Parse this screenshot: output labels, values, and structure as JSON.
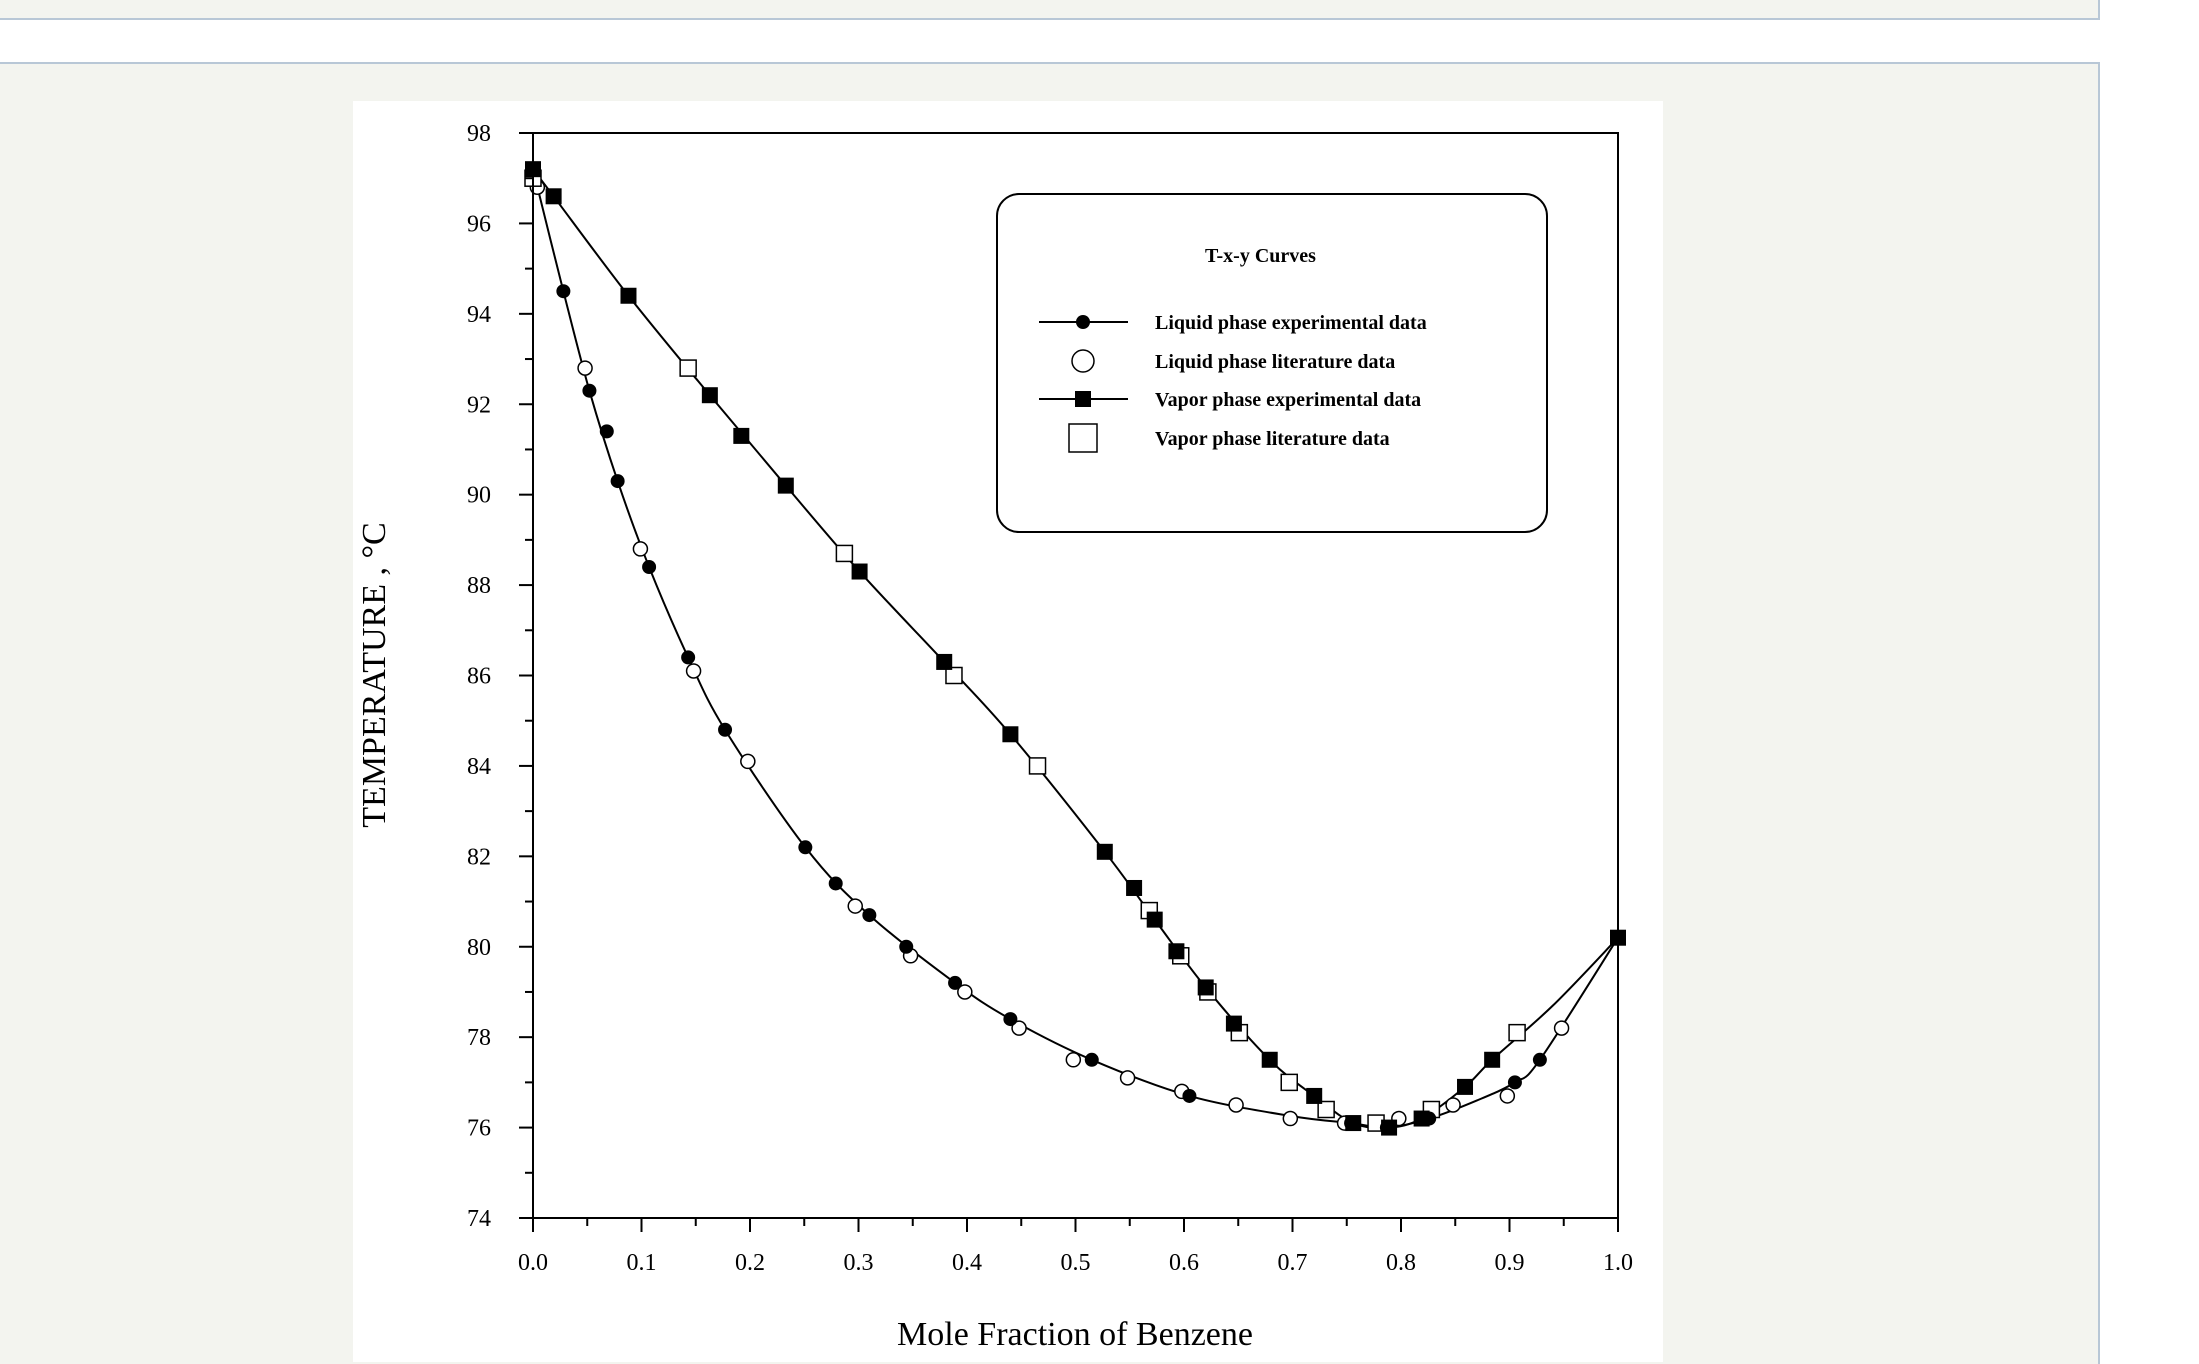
{
  "chart_data": {
    "type": "line",
    "legend": {
      "title": "T-x-y Curves",
      "placement": "top-right",
      "entries": [
        {
          "label": "Liquid phase experimental data",
          "marker": "filled-circle",
          "line": true
        },
        {
          "label": "Liquid phase literature data",
          "marker": "open-circle",
          "line": false
        },
        {
          "label": "Vapor phase experimental data",
          "marker": "filled-square",
          "line": true
        },
        {
          "label": "Vapor phase literature data",
          "marker": "open-square",
          "line": false
        }
      ]
    },
    "xlabel": "Mole Fraction of Benzene",
    "ylabel": "TEMPERATURE , °C",
    "xlim": [
      0.0,
      1.0
    ],
    "ylim": [
      74,
      98
    ],
    "xticks": [
      "0.0",
      "0.1",
      "0.2",
      "0.3",
      "0.4",
      "0.5",
      "0.6",
      "0.7",
      "0.8",
      "0.9",
      "1.0"
    ],
    "yticks": [
      "74",
      "76",
      "78",
      "80",
      "82",
      "84",
      "86",
      "88",
      "90",
      "92",
      "94",
      "96",
      "98"
    ],
    "grid": false,
    "series": [
      {
        "name": "Liquid phase experimental data",
        "marker": "filled-circle",
        "points": [
          [
            0.0,
            97.2
          ],
          [
            0.028,
            94.5
          ],
          [
            0.052,
            92.3
          ],
          [
            0.068,
            91.4
          ],
          [
            0.078,
            90.3
          ],
          [
            0.107,
            88.4
          ],
          [
            0.143,
            86.4
          ],
          [
            0.177,
            84.8
          ],
          [
            0.251,
            82.2
          ],
          [
            0.279,
            81.4
          ],
          [
            0.31,
            80.7
          ],
          [
            0.344,
            80.0
          ],
          [
            0.389,
            79.2
          ],
          [
            0.44,
            78.4
          ],
          [
            0.515,
            77.5
          ],
          [
            0.605,
            76.7
          ],
          [
            0.754,
            76.1
          ],
          [
            0.787,
            76.0
          ],
          [
            0.826,
            76.2
          ],
          [
            0.905,
            77.0
          ],
          [
            0.928,
            77.5
          ],
          [
            1.0,
            80.2
          ]
        ]
      },
      {
        "name": "Liquid phase literature data",
        "marker": "open-circle",
        "points": [
          [
            0.004,
            96.8
          ],
          [
            0.048,
            92.8
          ],
          [
            0.099,
            88.8
          ],
          [
            0.148,
            86.1
          ],
          [
            0.198,
            84.1
          ],
          [
            0.297,
            80.9
          ],
          [
            0.348,
            79.8
          ],
          [
            0.398,
            79.0
          ],
          [
            0.448,
            78.2
          ],
          [
            0.498,
            77.5
          ],
          [
            0.548,
            77.1
          ],
          [
            0.598,
            76.8
          ],
          [
            0.648,
            76.5
          ],
          [
            0.698,
            76.2
          ],
          [
            0.748,
            76.1
          ],
          [
            0.798,
            76.2
          ],
          [
            0.848,
            76.5
          ],
          [
            0.898,
            76.7
          ],
          [
            0.948,
            78.2
          ]
        ]
      },
      {
        "name": "Vapor phase experimental data",
        "marker": "filled-square",
        "points": [
          [
            0.0,
            97.2
          ],
          [
            0.019,
            96.6
          ],
          [
            0.088,
            94.4
          ],
          [
            0.163,
            92.2
          ],
          [
            0.192,
            91.3
          ],
          [
            0.233,
            90.2
          ],
          [
            0.301,
            88.3
          ],
          [
            0.379,
            86.3
          ],
          [
            0.44,
            84.7
          ],
          [
            0.527,
            82.1
          ],
          [
            0.554,
            81.3
          ],
          [
            0.573,
            80.6
          ],
          [
            0.593,
            79.9
          ],
          [
            0.62,
            79.1
          ],
          [
            0.646,
            78.3
          ],
          [
            0.679,
            77.5
          ],
          [
            0.72,
            76.7
          ],
          [
            0.756,
            76.1
          ],
          [
            0.789,
            76.0
          ],
          [
            0.819,
            76.2
          ],
          [
            0.859,
            76.9
          ],
          [
            0.884,
            77.5
          ],
          [
            1.0,
            80.2
          ]
        ]
      },
      {
        "name": "Vapor phase literature data",
        "marker": "open-square",
        "points": [
          [
            0.0,
            97.0
          ],
          [
            0.143,
            92.8
          ],
          [
            0.287,
            88.7
          ],
          [
            0.388,
            86.0
          ],
          [
            0.465,
            84.0
          ],
          [
            0.568,
            80.8
          ],
          [
            0.597,
            79.8
          ],
          [
            0.622,
            79.0
          ],
          [
            0.651,
            78.1
          ],
          [
            0.697,
            77.0
          ],
          [
            0.731,
            76.4
          ],
          [
            0.777,
            76.1
          ],
          [
            0.828,
            76.4
          ],
          [
            0.907,
            78.1
          ]
        ]
      }
    ],
    "curves": [
      {
        "name": "Liquid phase experimental data",
        "points": [
          [
            0.0,
            97.2
          ],
          [
            0.028,
            94.5
          ],
          [
            0.052,
            92.3
          ],
          [
            0.078,
            90.3
          ],
          [
            0.107,
            88.4
          ],
          [
            0.143,
            86.4
          ],
          [
            0.177,
            84.8
          ],
          [
            0.251,
            82.2
          ],
          [
            0.31,
            80.7
          ],
          [
            0.389,
            79.2
          ],
          [
            0.44,
            78.4
          ],
          [
            0.515,
            77.5
          ],
          [
            0.605,
            76.7
          ],
          [
            0.7,
            76.25
          ],
          [
            0.754,
            76.1
          ],
          [
            0.787,
            76.0
          ],
          [
            0.826,
            76.2
          ],
          [
            0.87,
            76.6
          ],
          [
            0.905,
            77.0
          ],
          [
            0.928,
            77.5
          ],
          [
            1.0,
            80.2
          ]
        ]
      },
      {
        "name": "Vapor phase experimental data",
        "points": [
          [
            0.0,
            97.2
          ],
          [
            0.019,
            96.6
          ],
          [
            0.088,
            94.4
          ],
          [
            0.163,
            92.2
          ],
          [
            0.233,
            90.2
          ],
          [
            0.301,
            88.3
          ],
          [
            0.379,
            86.3
          ],
          [
            0.44,
            84.7
          ],
          [
            0.527,
            82.1
          ],
          [
            0.573,
            80.6
          ],
          [
            0.62,
            79.1
          ],
          [
            0.679,
            77.5
          ],
          [
            0.72,
            76.7
          ],
          [
            0.756,
            76.1
          ],
          [
            0.789,
            76.0
          ],
          [
            0.819,
            76.2
          ],
          [
            0.859,
            76.9
          ],
          [
            0.884,
            77.5
          ],
          [
            0.94,
            78.7
          ],
          [
            1.0,
            80.2
          ]
        ]
      }
    ]
  }
}
